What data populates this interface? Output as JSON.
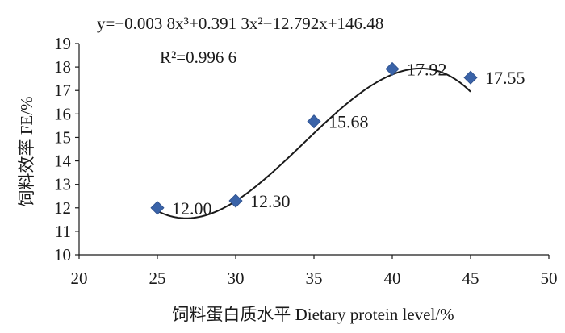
{
  "chart_data": {
    "type": "scatter",
    "equation": "y=−0.003 8x³+0.391 3x²−12.792x+146.48",
    "r_squared": "R²=0.996 6",
    "xlabel": "饲料蛋白质水平  Dietary protein level/%",
    "ylabel": "饲料效率  FE/%",
    "xlim": [
      20,
      50
    ],
    "ylim": [
      10,
      19
    ],
    "x_ticks": [
      "20",
      "25",
      "30",
      "35",
      "40",
      "45",
      "50"
    ],
    "y_ticks": [
      "10",
      "11",
      "12",
      "13",
      "14",
      "15",
      "16",
      "17",
      "18",
      "19"
    ],
    "grid": false,
    "marker_color": "#3A63A8",
    "trendline": {
      "type": "polynomial",
      "order": 3,
      "coefficients": [
        -0.0038,
        0.3913,
        -12.792,
        146.48
      ],
      "x_range": [
        25,
        45
      ]
    },
    "points": [
      {
        "x": 25,
        "y": 12.0,
        "label": "12.00"
      },
      {
        "x": 30,
        "y": 12.3,
        "label": "12.30"
      },
      {
        "x": 35,
        "y": 15.68,
        "label": "15.68"
      },
      {
        "x": 40,
        "y": 17.92,
        "label": "17.92"
      },
      {
        "x": 45,
        "y": 17.55,
        "label": "17.55"
      }
    ]
  }
}
